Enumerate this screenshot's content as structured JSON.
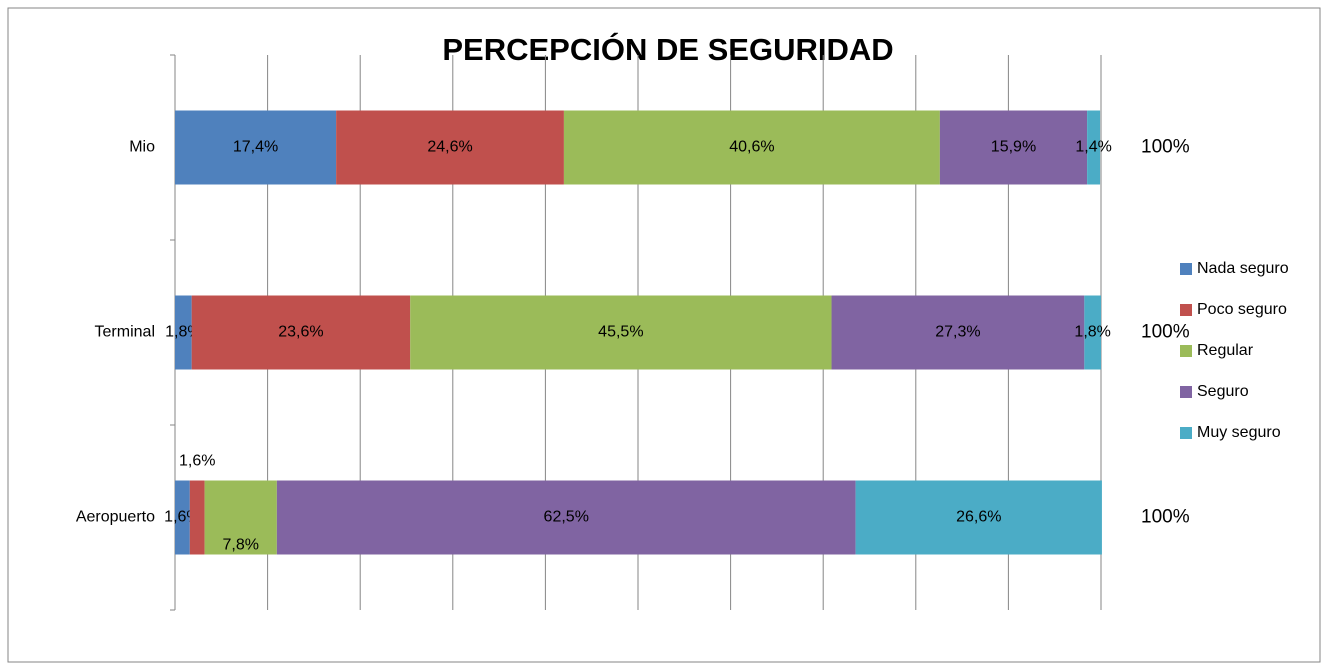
{
  "chart_data": {
    "type": "stacked_barh",
    "title": "PERCEPCIÓN DE SEGURIDAD",
    "categories": [
      "Mio",
      "Terminal",
      "Aeropuerto"
    ],
    "series": [
      {
        "name": "Nada seguro",
        "color": "#4f81bd",
        "values": [
          17.4,
          1.8,
          1.6
        ],
        "value_labels": [
          "17,4%",
          "1,8%",
          "1,6%"
        ]
      },
      {
        "name": "Poco seguro",
        "color": "#c0504d",
        "values": [
          24.6,
          23.6,
          1.6
        ],
        "value_labels": [
          "24,6%",
          "23,6%",
          "1,6%"
        ]
      },
      {
        "name": "Regular",
        "color": "#9bbb59",
        "values": [
          40.6,
          45.5,
          7.8
        ],
        "value_labels": [
          "40,6%",
          "45,5%",
          "7,8%"
        ]
      },
      {
        "name": "Seguro",
        "color": "#8064a2",
        "values": [
          15.9,
          27.3,
          62.5
        ],
        "value_labels": [
          "15,9%",
          "27,3%",
          "62,5%"
        ]
      },
      {
        "name": "Muy seguro",
        "color": "#4bacc6",
        "values": [
          1.4,
          1.8,
          26.6
        ],
        "value_labels": [
          "1,4%",
          "1,8%",
          "26,6%"
        ]
      }
    ],
    "totals": [
      100,
      100,
      100
    ],
    "total_labels": [
      "100%",
      "100%",
      "100%"
    ],
    "xlim": [
      0,
      100
    ],
    "xticks": [
      0,
      10,
      20,
      30,
      40,
      50,
      60,
      70,
      80,
      90,
      100
    ],
    "grid": true,
    "legend": "right"
  }
}
